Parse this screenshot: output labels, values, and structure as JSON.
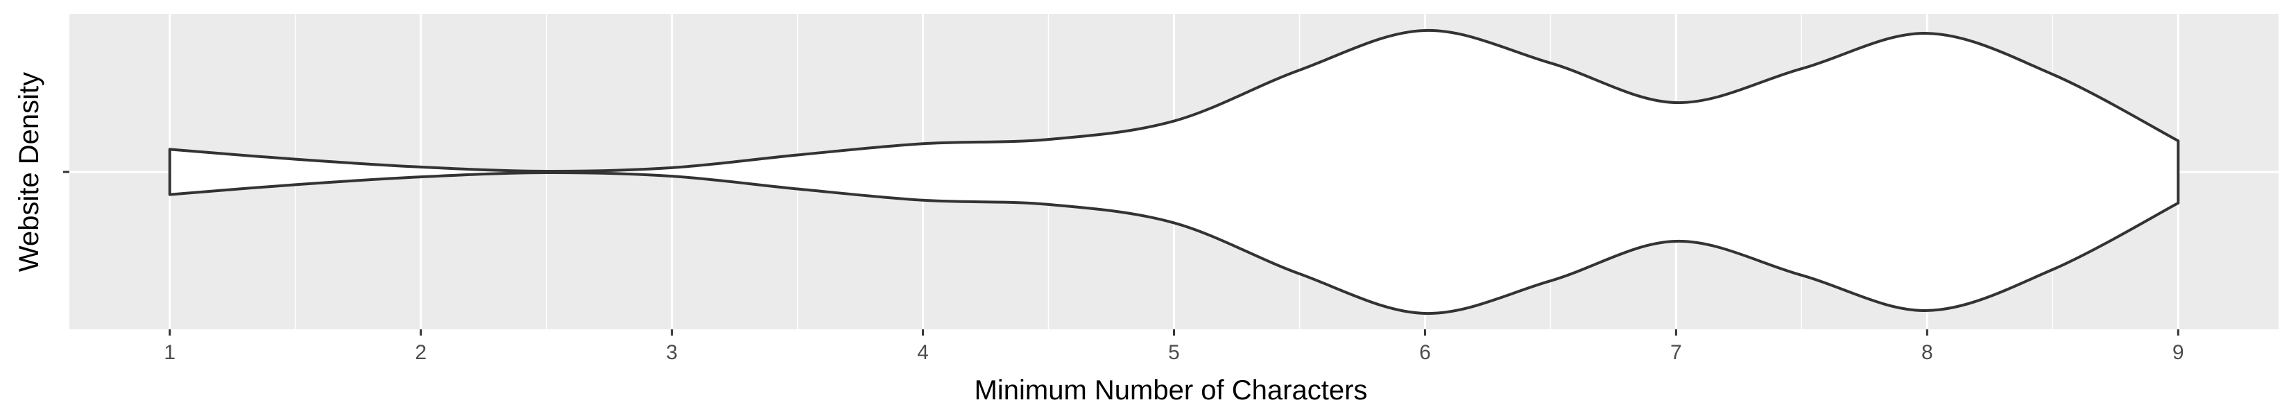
{
  "chart_data": {
    "type": "violin",
    "orientation": "horizontal",
    "xlabel": "Minimum Number of Characters",
    "ylabel": "Website Density",
    "xlim": [
      0.6,
      9.4
    ],
    "x_ticks": [
      1,
      2,
      3,
      4,
      5,
      6,
      7,
      8,
      9
    ],
    "x_tick_labels": [
      "1",
      "2",
      "3",
      "4",
      "5",
      "6",
      "7",
      "8",
      "9"
    ],
    "y_tick_labels": [
      ""
    ],
    "grid": true,
    "legend": "none",
    "density": {
      "x": [
        1,
        1.5,
        2,
        2.5,
        3,
        3.5,
        4,
        4.5,
        5,
        5.5,
        6,
        6.5,
        7,
        7.5,
        8,
        8.5,
        9
      ],
      "half_width": [
        0.16,
        0.09,
        0.035,
        0.005,
        0.03,
        0.12,
        0.2,
        0.23,
        0.36,
        0.72,
        1.0,
        0.77,
        0.49,
        0.73,
        0.98,
        0.69,
        0.22
      ]
    },
    "colors": {
      "panel": "#ebebeb",
      "grid": "#ffffff",
      "violin_fill": "#ffffff",
      "violin_stroke": "#333333",
      "tick": "#333333"
    }
  }
}
